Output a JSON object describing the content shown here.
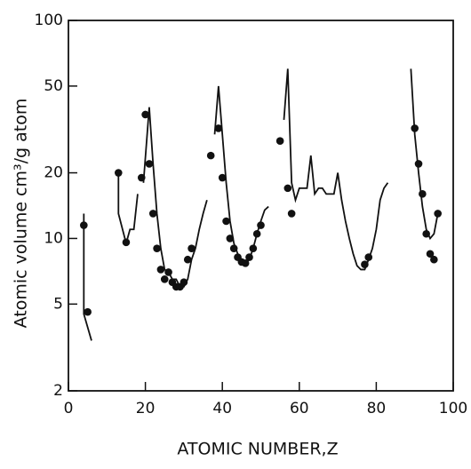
{
  "chart_data": {
    "type": "line",
    "x_label": "ATOMIC NUMBER,Z",
    "y_label": "Atomic volume cm³/g atom",
    "xlim": [
      0,
      100
    ],
    "xticks": [
      0,
      20,
      40,
      60,
      80,
      100
    ],
    "ylim": [
      2,
      100
    ],
    "yticks": [
      2,
      5,
      10,
      20,
      50,
      100
    ],
    "log_y": true,
    "color": "#111111",
    "series": [
      {
        "x": [
          4,
          4,
          6
        ],
        "values": [
          13,
          4.5,
          3.4
        ]
      },
      {
        "x": [
          13,
          13,
          15,
          16,
          17,
          18
        ],
        "values": [
          20,
          13,
          9.5,
          11,
          11,
          16
        ]
      },
      {
        "x": [
          19.5,
          21,
          22,
          23,
          24,
          25,
          26,
          27,
          28,
          29,
          30,
          31,
          32,
          33,
          34,
          35,
          36
        ],
        "values": [
          18,
          40,
          22,
          13,
          9,
          7.2,
          7,
          6.5,
          6.5,
          6,
          6,
          6.5,
          8,
          9,
          11,
          13,
          15
        ]
      },
      {
        "x": [
          38,
          39,
          40,
          41,
          42,
          43,
          44,
          45,
          46,
          47,
          48,
          49,
          50,
          51,
          52
        ],
        "values": [
          30,
          50,
          30,
          18,
          12,
          9.5,
          8.5,
          8,
          7.7,
          8,
          9,
          10.5,
          12,
          13.5,
          14
        ]
      },
      {
        "x": [
          56,
          57,
          58,
          59,
          60,
          61,
          62,
          63,
          64,
          65,
          66,
          67,
          68,
          69,
          70,
          71,
          72,
          73,
          74,
          75,
          76,
          77,
          78,
          79,
          80,
          81,
          82,
          83
        ],
        "values": [
          35,
          60,
          18,
          15,
          17,
          17,
          17,
          24,
          16,
          17,
          17,
          16,
          16,
          16,
          20,
          15,
          12,
          10,
          8.5,
          7.5,
          7.2,
          7.2,
          8,
          9,
          11,
          15,
          17,
          18
        ]
      },
      {
        "x": [
          89,
          90,
          91,
          92,
          93,
          94,
          95,
          96
        ],
        "values": [
          60,
          30,
          20,
          14,
          11,
          10,
          10.5,
          13
        ]
      }
    ],
    "points": {
      "x": [
        4,
        5,
        13,
        15,
        19,
        20,
        21,
        22,
        23,
        24,
        25,
        26,
        27,
        28,
        29,
        30,
        31,
        32,
        37,
        39,
        40,
        41,
        42,
        43,
        44,
        45,
        46,
        47,
        48,
        49,
        50,
        55,
        57,
        58,
        77,
        78,
        90,
        91,
        92,
        93,
        94,
        95,
        96
      ],
      "values": [
        11.5,
        4.6,
        20,
        9.6,
        19,
        37,
        22,
        13,
        9,
        7.2,
        6.5,
        7,
        6.3,
        6,
        6,
        6.3,
        8,
        9,
        24,
        32,
        19,
        12,
        10,
        9,
        8.2,
        7.8,
        7.7,
        8.2,
        9,
        10.5,
        11.5,
        28,
        17,
        13,
        7.6,
        8.2,
        32,
        22,
        16,
        10.5,
        8.5,
        8,
        13
      ]
    }
  }
}
